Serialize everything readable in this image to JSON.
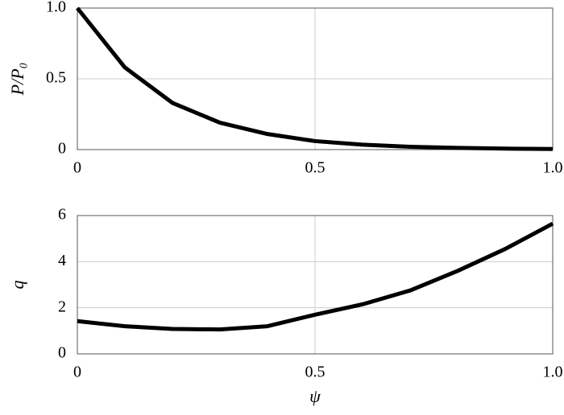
{
  "chart_data": [
    {
      "type": "line",
      "ylabel": "P/P₀",
      "x": [
        0,
        0.1,
        0.2,
        0.3,
        0.4,
        0.5,
        0.6,
        0.7,
        0.8,
        0.9,
        1.0
      ],
      "series": [
        {
          "name": "P/P₀",
          "color": "#000000",
          "values": [
            1.0,
            0.58,
            0.33,
            0.19,
            0.11,
            0.06,
            0.035,
            0.02,
            0.012,
            0.007,
            0.004
          ]
        }
      ],
      "xlim": [
        0,
        1
      ],
      "xticks": [
        0,
        0.5,
        {
          "value": 1,
          "label": "1.0"
        }
      ],
      "ylim": [
        0,
        1
      ],
      "yticks": [
        0,
        0.5,
        {
          "value": 1,
          "label": "1.0"
        }
      ],
      "grid": true
    },
    {
      "type": "line",
      "ylabel": "q",
      "xlabel": "ψ",
      "x": [
        0,
        0.1,
        0.2,
        0.3,
        0.4,
        0.5,
        0.6,
        0.7,
        0.8,
        0.9,
        1.0
      ],
      "series": [
        {
          "name": "q",
          "color": "#000000",
          "values": [
            1.42,
            1.2,
            1.08,
            1.06,
            1.2,
            1.7,
            2.15,
            2.75,
            3.6,
            4.55,
            5.65
          ]
        }
      ],
      "xlim": [
        0,
        1
      ],
      "xticks": [
        0,
        0.5,
        {
          "value": 1,
          "label": "1.0"
        }
      ],
      "ylim": [
        0,
        6
      ],
      "yticks": [
        0,
        2,
        4,
        6
      ],
      "grid": true
    }
  ]
}
